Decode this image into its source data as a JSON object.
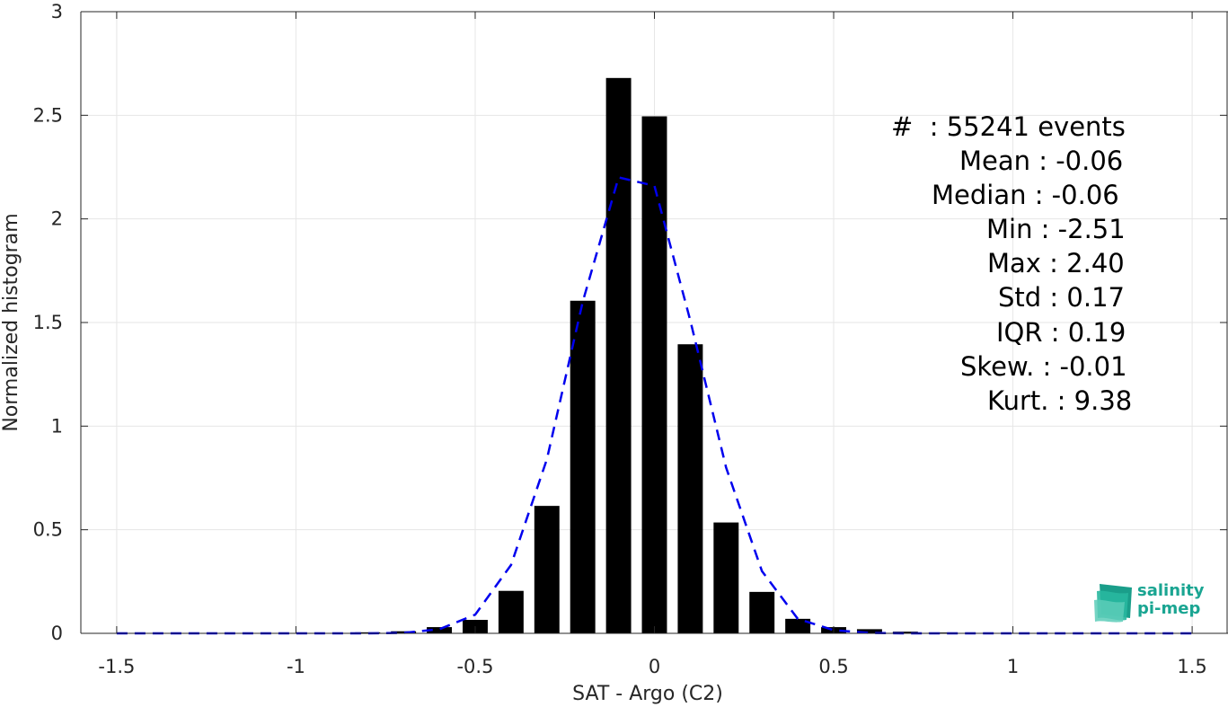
{
  "chart_data": {
    "type": "bar",
    "xlabel": "SAT - Argo (C2)",
    "ylabel": "Normalized histogram",
    "xlim": [
      -1.6,
      1.6
    ],
    "ylim": [
      0,
      3
    ],
    "grid": true,
    "xticks": [
      -1.5,
      -1,
      -0.5,
      0,
      0.5,
      1,
      1.5
    ],
    "xtick_labels": [
      "-1.5",
      "-1",
      "-0.5",
      "0",
      "0.5",
      "1",
      "1.5"
    ],
    "yticks": [
      0,
      0.5,
      1,
      1.5,
      2,
      2.5,
      3
    ],
    "ytick_labels": [
      "0",
      "0.5",
      "1",
      "1.5",
      "2",
      "2.5",
      "3"
    ],
    "bar_width": 0.07,
    "bars": {
      "x": [
        -1.5,
        -1.4,
        -1.3,
        -1.2,
        -1.1,
        -1.0,
        -0.9,
        -0.8,
        -0.7,
        -0.6,
        -0.5,
        -0.4,
        -0.3,
        -0.2,
        -0.1,
        0.0,
        0.1,
        0.2,
        0.3,
        0.4,
        0.5,
        0.6,
        0.7,
        0.8,
        0.9,
        1.0,
        1.1,
        1.2,
        1.3,
        1.4,
        1.5
      ],
      "values": [
        0.001,
        0.001,
        0.001,
        0.001,
        0.001,
        0.001,
        0.002,
        0.005,
        0.01,
        0.03,
        0.065,
        0.205,
        0.615,
        1.605,
        2.68,
        2.495,
        1.395,
        0.535,
        0.2,
        0.07,
        0.03,
        0.02,
        0.008,
        0.004,
        0.002,
        0.001,
        0.001,
        0.001,
        0.001,
        0.001,
        0.001
      ]
    },
    "fit_curve": {
      "style": "dashed",
      "color": "#0000ee",
      "x": [
        -1.5,
        -1.4,
        -1.3,
        -1.2,
        -1.1,
        -1.0,
        -0.9,
        -0.8,
        -0.7,
        -0.6,
        -0.5,
        -0.4,
        -0.3,
        -0.2,
        -0.1,
        0.0,
        0.1,
        0.2,
        0.3,
        0.4,
        0.5,
        0.6,
        0.7,
        0.8,
        0.9,
        1.0,
        1.1,
        1.2,
        1.3,
        1.4,
        1.5
      ],
      "values": [
        0,
        0,
        0,
        0,
        0,
        0,
        0,
        0,
        0.002,
        0.02,
        0.09,
        0.33,
        0.84,
        1.6,
        2.2,
        2.16,
        1.51,
        0.8,
        0.3,
        0.07,
        0.015,
        0.002,
        0,
        0,
        0,
        0,
        0,
        0,
        0,
        0,
        0
      ]
    },
    "annotation": [
      "#  : 55241 events",
      "Mean : -0.06",
      "Median : -0.06",
      "Min : -2.51",
      "Max : 2.40",
      "Std : 0.17",
      "IQR : 0.19",
      "Skew. : -0.01",
      "Kurt. : 9.38"
    ]
  },
  "logo": {
    "line1": "salinity",
    "line2": "pi-mep"
  },
  "colors": {
    "bar": "#000000",
    "fit": "#0000ee",
    "grid": "#e6e6e6",
    "axis": "#262626",
    "logo": "#1aa592"
  }
}
